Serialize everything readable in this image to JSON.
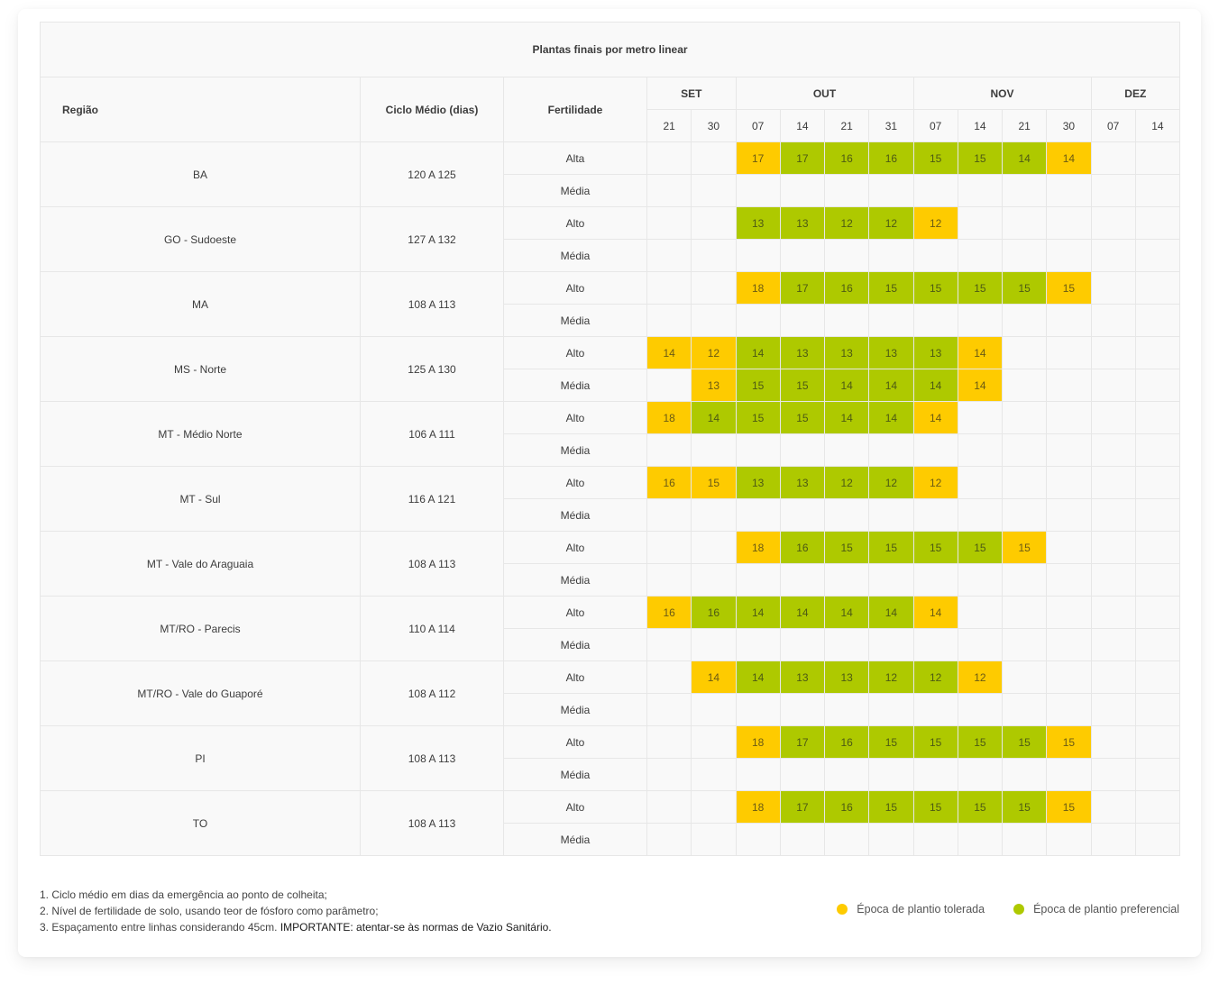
{
  "title": "Plantas finais por metro linear",
  "headers": {
    "region": "Região",
    "cycle": "Ciclo Médio (dias)",
    "fertility": "Fertilidade"
  },
  "months": [
    {
      "label": "SET",
      "span": 2
    },
    {
      "label": "OUT",
      "span": 4
    },
    {
      "label": "NOV",
      "span": 4
    },
    {
      "label": "DEZ",
      "span": 2
    }
  ],
  "days": [
    "21",
    "30",
    "07",
    "14",
    "21",
    "31",
    "07",
    "14",
    "21",
    "30",
    "07",
    "14"
  ],
  "colors": {
    "tolerated": "#fecb00",
    "preferred": "#aec900"
  },
  "legend": {
    "tolerated": "Época de plantio tolerada",
    "preferred": "Época de plantio preferencial"
  },
  "regions": [
    {
      "name": "BA",
      "cycle": "120 A 125",
      "rows": [
        {
          "fertility": "Alta",
          "cells": [
            "",
            "",
            "T:17",
            "P:17",
            "P:16",
            "P:16",
            "P:15",
            "P:15",
            "P:14",
            "T:14",
            "",
            ""
          ]
        },
        {
          "fertility": "Média",
          "cells": [
            "",
            "",
            "",
            "",
            "",
            "",
            "",
            "",
            "",
            "",
            "",
            ""
          ]
        }
      ]
    },
    {
      "name": "GO - Sudoeste",
      "cycle": "127 A 132",
      "rows": [
        {
          "fertility": "Alto",
          "cells": [
            "",
            "",
            "P:13",
            "P:13",
            "P:12",
            "P:12",
            "T:12",
            "",
            "",
            "",
            "",
            ""
          ]
        },
        {
          "fertility": "Média",
          "cells": [
            "",
            "",
            "",
            "",
            "",
            "",
            "",
            "",
            "",
            "",
            "",
            ""
          ]
        }
      ]
    },
    {
      "name": "MA",
      "cycle": "108 A 113",
      "rows": [
        {
          "fertility": "Alto",
          "cells": [
            "",
            "",
            "T:18",
            "P:17",
            "P:16",
            "P:15",
            "P:15",
            "P:15",
            "P:15",
            "T:15",
            "",
            ""
          ]
        },
        {
          "fertility": "Média",
          "cells": [
            "",
            "",
            "",
            "",
            "",
            "",
            "",
            "",
            "",
            "",
            "",
            ""
          ]
        }
      ]
    },
    {
      "name": "MS - Norte",
      "cycle": "125 A 130",
      "rows": [
        {
          "fertility": "Alto",
          "cells": [
            "T:14",
            "T:12",
            "P:14",
            "P:13",
            "P:13",
            "P:13",
            "P:13",
            "T:14",
            "",
            "",
            "",
            ""
          ]
        },
        {
          "fertility": "Média",
          "cells": [
            "",
            "T:13",
            "P:15",
            "P:15",
            "P:14",
            "P:14",
            "P:14",
            "T:14",
            "",
            "",
            "",
            ""
          ]
        }
      ]
    },
    {
      "name": "MT - Médio Norte",
      "cycle": "106 A 111",
      "rows": [
        {
          "fertility": "Alto",
          "cells": [
            "T:18",
            "P:14",
            "P:15",
            "P:15",
            "P:14",
            "P:14",
            "T:14",
            "",
            "",
            "",
            "",
            ""
          ]
        },
        {
          "fertility": "Média",
          "cells": [
            "",
            "",
            "",
            "",
            "",
            "",
            "",
            "",
            "",
            "",
            "",
            ""
          ]
        }
      ]
    },
    {
      "name": "MT - Sul",
      "cycle": "116 A 121",
      "rows": [
        {
          "fertility": "Alto",
          "cells": [
            "T:16",
            "T:15",
            "P:13",
            "P:13",
            "P:12",
            "P:12",
            "T:12",
            "",
            "",
            "",
            "",
            ""
          ]
        },
        {
          "fertility": "Média",
          "cells": [
            "",
            "",
            "",
            "",
            "",
            "",
            "",
            "",
            "",
            "",
            "",
            ""
          ]
        }
      ]
    },
    {
      "name": "MT - Vale do Araguaia",
      "cycle": "108 A 113",
      "rows": [
        {
          "fertility": "Alto",
          "cells": [
            "",
            "",
            "T:18",
            "P:16",
            "P:15",
            "P:15",
            "P:15",
            "P:15",
            "T:15",
            "",
            "",
            ""
          ]
        },
        {
          "fertility": "Média",
          "cells": [
            "",
            "",
            "",
            "",
            "",
            "",
            "",
            "",
            "",
            "",
            "",
            ""
          ]
        }
      ]
    },
    {
      "name": "MT/RO - Parecis",
      "cycle": "110 A 114",
      "rows": [
        {
          "fertility": "Alto",
          "cells": [
            "T:16",
            "P:16",
            "P:14",
            "P:14",
            "P:14",
            "P:14",
            "T:14",
            "",
            "",
            "",
            "",
            ""
          ]
        },
        {
          "fertility": "Média",
          "cells": [
            "",
            "",
            "",
            "",
            "",
            "",
            "",
            "",
            "",
            "",
            "",
            ""
          ]
        }
      ]
    },
    {
      "name": "MT/RO - Vale do Guaporé",
      "cycle": "108 A 112",
      "rows": [
        {
          "fertility": "Alto",
          "cells": [
            "",
            "T:14",
            "P:14",
            "P:13",
            "P:13",
            "P:12",
            "P:12",
            "T:12",
            "",
            "",
            "",
            ""
          ]
        },
        {
          "fertility": "Média",
          "cells": [
            "",
            "",
            "",
            "",
            "",
            "",
            "",
            "",
            "",
            "",
            "",
            ""
          ]
        }
      ]
    },
    {
      "name": "PI",
      "cycle": "108 A 113",
      "rows": [
        {
          "fertility": "Alto",
          "cells": [
            "",
            "",
            "T:18",
            "P:17",
            "P:16",
            "P:15",
            "P:15",
            "P:15",
            "P:15",
            "T:15",
            "",
            ""
          ]
        },
        {
          "fertility": "Média",
          "cells": [
            "",
            "",
            "",
            "",
            "",
            "",
            "",
            "",
            "",
            "",
            "",
            ""
          ]
        }
      ]
    },
    {
      "name": "TO",
      "cycle": "108 A 113",
      "rows": [
        {
          "fertility": "Alto",
          "cells": [
            "",
            "",
            "T:18",
            "P:17",
            "P:16",
            "P:15",
            "P:15",
            "P:15",
            "P:15",
            "T:15",
            "",
            ""
          ]
        },
        {
          "fertility": "Média",
          "cells": [
            "",
            "",
            "",
            "",
            "",
            "",
            "",
            "",
            "",
            "",
            "",
            ""
          ]
        }
      ]
    }
  ],
  "footnotes": {
    "note1": "1. Ciclo médio em dias da emergência ao ponto de colheita;",
    "note2": "2. Nível de fertilidade de solo, usando teor de fósforo como parâmetro;",
    "note3": "3. Espaçamento entre linhas considerando 45cm. ",
    "note3_important": "IMPORTANTE: atentar-se às normas de Vazio Sanitário."
  }
}
